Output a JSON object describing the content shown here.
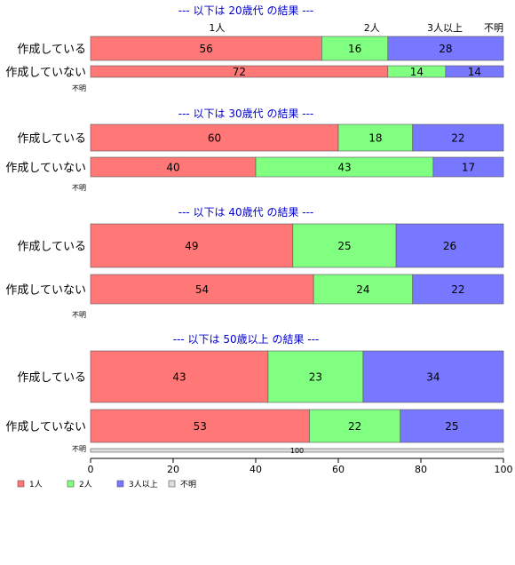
{
  "chart_data": {
    "type": "bar",
    "orientation": "horizontal",
    "stacked": true,
    "xlim": [
      0,
      100
    ],
    "xticks": [
      "0",
      "20",
      "40",
      "60",
      "80",
      "100"
    ],
    "category_headers": [
      "1人",
      "2人",
      "3人以上",
      "不明"
    ],
    "colors": {
      "1人": "#ff7777",
      "2人": "#80ff80",
      "3人以上": "#7777ff",
      "不明": "#dddddd"
    },
    "legend": {
      "placement": "bottom-left",
      "entries": [
        {
          "label": "1人",
          "color": "#ff7777"
        },
        {
          "label": "2人",
          "color": "#80ff80"
        },
        {
          "label": "3人以上",
          "color": "#7777ff"
        },
        {
          "label": "不明",
          "color": "#dddddd"
        }
      ]
    },
    "panels": [
      {
        "title": "--- 以下は 20歳代 の結果 ---",
        "rows": [
          {
            "label": "作成している",
            "values": [
              56,
              16,
              28,
              0
            ],
            "labels": [
              "56",
              "16",
              "28",
              ""
            ]
          },
          {
            "label": "作成していない",
            "values": [
              72,
              14,
              14,
              0
            ],
            "labels": [
              "72",
              "14",
              "14",
              ""
            ]
          },
          {
            "label": "不明",
            "values": [
              0,
              0,
              0,
              0
            ],
            "labels": [
              "",
              "",
              "",
              ""
            ]
          }
        ]
      },
      {
        "title": "--- 以下は 30歳代 の結果 ---",
        "rows": [
          {
            "label": "作成している",
            "values": [
              60,
              18,
              22,
              0
            ],
            "labels": [
              "60",
              "18",
              "22",
              ""
            ]
          },
          {
            "label": "作成していない",
            "values": [
              40,
              43,
              17,
              0
            ],
            "labels": [
              "40",
              "43",
              "17",
              ""
            ]
          },
          {
            "label": "不明",
            "values": [
              0,
              0,
              0,
              0
            ],
            "labels": [
              "",
              "",
              "",
              ""
            ]
          }
        ]
      },
      {
        "title": "--- 以下は 40歳代 の結果 ---",
        "rows": [
          {
            "label": "作成している",
            "values": [
              49,
              25,
              26,
              0
            ],
            "labels": [
              "49",
              "25",
              "26",
              ""
            ]
          },
          {
            "label": "作成していない",
            "values": [
              54,
              24,
              22,
              0
            ],
            "labels": [
              "54",
              "24",
              "22",
              ""
            ]
          },
          {
            "label": "不明",
            "values": [
              0,
              0,
              0,
              0
            ],
            "labels": [
              "",
              "",
              "",
              ""
            ]
          }
        ]
      },
      {
        "title": "--- 以下は 50歳以上 の結果 ---",
        "rows": [
          {
            "label": "作成している",
            "values": [
              43,
              23,
              34,
              0
            ],
            "labels": [
              "43",
              "23",
              "34",
              ""
            ]
          },
          {
            "label": "作成していない",
            "values": [
              53,
              22,
              25,
              0
            ],
            "labels": [
              "53",
              "22",
              "25",
              ""
            ]
          },
          {
            "label": "不明",
            "values": [
              0,
              0,
              0,
              100
            ],
            "labels": [
              "",
              "",
              "",
              "100"
            ]
          }
        ]
      }
    ]
  }
}
